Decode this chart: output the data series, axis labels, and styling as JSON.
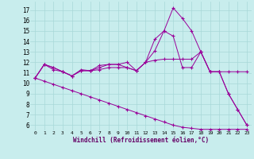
{
  "xlabel": "Windchill (Refroidissement éolien,°C)",
  "background_color": "#c8eded",
  "grid_color": "#a8d8d8",
  "line_color": "#990099",
  "x_ticks": [
    0,
    1,
    2,
    3,
    4,
    5,
    6,
    7,
    8,
    9,
    10,
    11,
    12,
    13,
    14,
    15,
    16,
    17,
    18,
    19,
    20,
    21,
    22,
    23
  ],
  "y_ticks": [
    6,
    7,
    8,
    9,
    10,
    11,
    12,
    13,
    14,
    15,
    16,
    17
  ],
  "ylim": [
    5.5,
    17.8
  ],
  "xlim": [
    -0.5,
    23.5
  ],
  "y_peak_high": [
    10.5,
    11.8,
    11.5,
    11.1,
    10.7,
    11.3,
    11.2,
    11.7,
    11.8,
    11.8,
    12.0,
    11.2,
    12.0,
    13.1,
    15.0,
    17.2,
    16.2,
    15.0,
    13.0,
    11.1,
    11.1,
    9.0,
    7.5,
    6.0
  ],
  "y_peak_med": [
    10.5,
    11.8,
    11.3,
    11.1,
    10.7,
    11.2,
    11.2,
    11.5,
    11.8,
    11.8,
    11.5,
    11.2,
    12.0,
    14.2,
    15.0,
    14.5,
    11.5,
    11.5,
    13.0,
    11.1,
    11.1,
    9.0,
    7.5,
    6.0
  ],
  "y_flat": [
    10.5,
    11.8,
    11.5,
    11.1,
    10.7,
    11.2,
    11.2,
    11.3,
    11.5,
    11.5,
    11.5,
    11.2,
    12.0,
    12.2,
    12.3,
    12.3,
    12.3,
    12.3,
    13.0,
    11.1,
    11.1,
    11.1,
    11.1,
    11.1
  ],
  "y_diag": [
    10.5,
    10.2,
    9.9,
    9.6,
    9.3,
    9.0,
    8.7,
    8.4,
    8.1,
    7.8,
    7.5,
    7.2,
    6.9,
    6.6,
    6.3,
    6.0,
    5.8,
    5.7,
    5.6,
    5.6,
    5.6,
    5.6,
    5.6,
    5.6
  ]
}
